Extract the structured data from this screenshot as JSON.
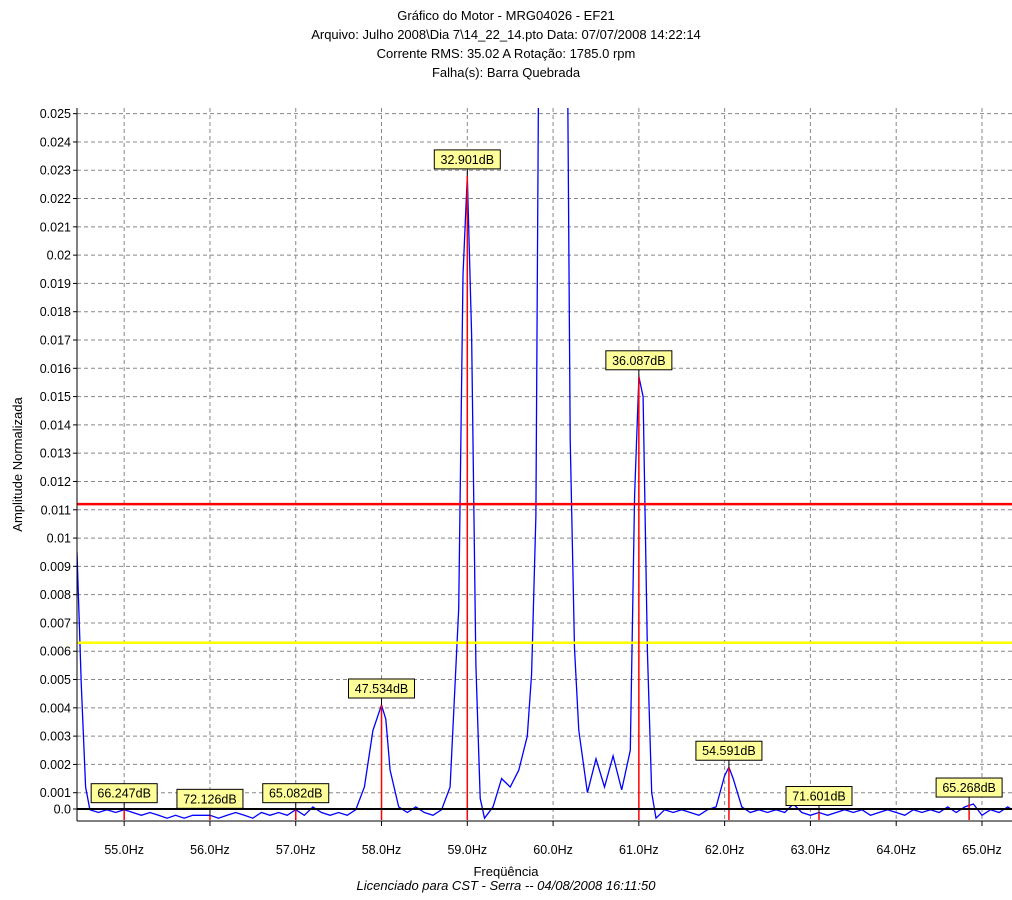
{
  "header": {
    "title": "Gráfico do Motor - MRG04026 - EF21",
    "file_line": "Arquivo: Julho 2008\\Dia 7\\14_22_14.pto    Data: 07/07/2008 14:22:14",
    "current_line": "Corrente RMS: 35.02 A    Rotação: 1785.0 rpm",
    "fault_line": "Falha(s): Barra Quebrada"
  },
  "footer": {
    "license": "Licenciado para CST - Serra -- 04/08/2008 16:11:50"
  },
  "chart_data": {
    "type": "line",
    "xlabel": "Freqüência",
    "ylabel": "Amplitude Normalizada",
    "xlim": [
      54.45,
      65.35
    ],
    "ylim": [
      0,
      0.0252
    ],
    "grid": true,
    "x_ticks": [
      55,
      56,
      57,
      58,
      59,
      60,
      61,
      62,
      63,
      64,
      65
    ],
    "x_tick_labels": [
      "55.0Hz",
      "56.0Hz",
      "57.0Hz",
      "58.0Hz",
      "59.0Hz",
      "60.0Hz",
      "61.0Hz",
      "62.0Hz",
      "63.0Hz",
      "64.0Hz",
      "65.0Hz"
    ],
    "y_ticks": [
      0,
      0.001,
      0.002,
      0.003,
      0.004,
      0.005,
      0.006,
      0.007,
      0.008,
      0.009,
      0.01,
      0.011,
      0.012,
      0.013,
      0.014,
      0.015,
      0.016,
      0.017,
      0.018,
      0.019,
      0.02,
      0.021,
      0.022,
      0.023,
      0.024,
      0.025
    ],
    "y_tick_labels": [
      "0.0",
      "0.001",
      "0.002",
      "0.003",
      "0.004",
      "0.005",
      "0.006",
      "0.007",
      "0.008",
      "0.009",
      "0.01",
      "0.011",
      "0.012",
      "0.013",
      "0.014",
      "0.015",
      "0.016",
      "0.017",
      "0.018",
      "0.019",
      "0.02",
      "0.021",
      "0.022",
      "0.023",
      "0.024",
      "0.025"
    ],
    "thresholds": [
      {
        "y": 0.0112,
        "color": "#ff0000"
      },
      {
        "y": 0.0063,
        "color": "#ffff00"
      }
    ],
    "colors": {
      "spectrum": "#0000ff",
      "markers": "#ff0000",
      "label_bg": "#ffff99",
      "grid": "#888888"
    },
    "spectrum": [
      [
        54.45,
        0.0095
      ],
      [
        54.5,
        0.0048
      ],
      [
        54.55,
        0.0012
      ],
      [
        54.6,
        0.0004
      ],
      [
        54.7,
        0.0003
      ],
      [
        54.8,
        0.0004
      ],
      [
        54.9,
        0.0003
      ],
      [
        55.0,
        0.0004
      ],
      [
        55.1,
        0.0003
      ],
      [
        55.2,
        0.0002
      ],
      [
        55.3,
        0.0003
      ],
      [
        55.4,
        0.0002
      ],
      [
        55.5,
        0.0001
      ],
      [
        55.6,
        0.0002
      ],
      [
        55.7,
        0.0001
      ],
      [
        55.8,
        0.0002
      ],
      [
        55.9,
        0.0002
      ],
      [
        56.0,
        0.0002
      ],
      [
        56.1,
        0.0001
      ],
      [
        56.2,
        0.0002
      ],
      [
        56.3,
        0.0003
      ],
      [
        56.4,
        0.0002
      ],
      [
        56.5,
        0.0001
      ],
      [
        56.6,
        0.0003
      ],
      [
        56.7,
        0.0002
      ],
      [
        56.8,
        0.0003
      ],
      [
        56.9,
        0.0002
      ],
      [
        57.0,
        0.0004
      ],
      [
        57.1,
        0.0002
      ],
      [
        57.2,
        0.0005
      ],
      [
        57.3,
        0.0003
      ],
      [
        57.4,
        0.0002
      ],
      [
        57.5,
        0.0003
      ],
      [
        57.6,
        0.0002
      ],
      [
        57.7,
        0.0004
      ],
      [
        57.8,
        0.0012
      ],
      [
        57.9,
        0.0032
      ],
      [
        58.0,
        0.0041
      ],
      [
        58.05,
        0.0036
      ],
      [
        58.1,
        0.0018
      ],
      [
        58.2,
        0.0005
      ],
      [
        58.3,
        0.0003
      ],
      [
        58.4,
        0.0005
      ],
      [
        58.5,
        0.0003
      ],
      [
        58.6,
        0.0002
      ],
      [
        58.7,
        0.0004
      ],
      [
        58.8,
        0.0012
      ],
      [
        58.9,
        0.0075
      ],
      [
        58.95,
        0.0193
      ],
      [
        59.0,
        0.0228
      ],
      [
        59.05,
        0.0172
      ],
      [
        59.1,
        0.0055
      ],
      [
        59.15,
        0.0008
      ],
      [
        59.2,
        0.0001
      ],
      [
        59.3,
        0.0005
      ],
      [
        59.4,
        0.0015
      ],
      [
        59.5,
        0.0012
      ],
      [
        59.6,
        0.0018
      ],
      [
        59.7,
        0.003
      ],
      [
        59.75,
        0.0052
      ],
      [
        59.8,
        0.0108
      ],
      [
        59.83,
        0.026
      ],
      [
        60.17,
        0.026
      ],
      [
        60.2,
        0.0135
      ],
      [
        60.25,
        0.0061
      ],
      [
        60.3,
        0.0032
      ],
      [
        60.4,
        0.001
      ],
      [
        60.5,
        0.0022
      ],
      [
        60.6,
        0.0012
      ],
      [
        60.7,
        0.0023
      ],
      [
        60.8,
        0.0011
      ],
      [
        60.9,
        0.0025
      ],
      [
        60.95,
        0.0115
      ],
      [
        61.0,
        0.0157
      ],
      [
        61.05,
        0.015
      ],
      [
        61.1,
        0.006
      ],
      [
        61.15,
        0.001
      ],
      [
        61.2,
        0.0001
      ],
      [
        61.3,
        0.0004
      ],
      [
        61.4,
        0.0003
      ],
      [
        61.5,
        0.0004
      ],
      [
        61.6,
        0.0003
      ],
      [
        61.7,
        0.0002
      ],
      [
        61.8,
        0.0004
      ],
      [
        61.9,
        0.0005
      ],
      [
        62.0,
        0.0016
      ],
      [
        62.05,
        0.0019
      ],
      [
        62.1,
        0.0015
      ],
      [
        62.2,
        0.0005
      ],
      [
        62.3,
        0.0003
      ],
      [
        62.4,
        0.0004
      ],
      [
        62.5,
        0.0003
      ],
      [
        62.6,
        0.0004
      ],
      [
        62.7,
        0.0003
      ],
      [
        62.8,
        0.0006
      ],
      [
        62.9,
        0.0003
      ],
      [
        63.0,
        0.0002
      ],
      [
        63.1,
        0.0003
      ],
      [
        63.2,
        0.0002
      ],
      [
        63.3,
        0.0003
      ],
      [
        63.4,
        0.0004
      ],
      [
        63.5,
        0.0003
      ],
      [
        63.6,
        0.0004
      ],
      [
        63.7,
        0.0002
      ],
      [
        63.8,
        0.0003
      ],
      [
        63.9,
        0.0004
      ],
      [
        64.0,
        0.0003
      ],
      [
        64.1,
        0.0002
      ],
      [
        64.2,
        0.0004
      ],
      [
        64.3,
        0.0003
      ],
      [
        64.4,
        0.0004
      ],
      [
        64.5,
        0.0003
      ],
      [
        64.6,
        0.0005
      ],
      [
        64.7,
        0.0003
      ],
      [
        64.8,
        0.0005
      ],
      [
        64.9,
        0.0006
      ],
      [
        65.0,
        0.0002
      ],
      [
        65.1,
        0.0004
      ],
      [
        65.2,
        0.0003
      ],
      [
        65.3,
        0.0005
      ],
      [
        65.35,
        0.0004
      ]
    ],
    "annotations": [
      {
        "label": "66.247dB",
        "x": 55.0,
        "y": 0.0004
      },
      {
        "label": "72.126dB",
        "x": 56.0,
        "y": 0.0002
      },
      {
        "label": "65.082dB",
        "x": 57.0,
        "y": 0.0004
      },
      {
        "label": "47.534dB",
        "x": 58.0,
        "y": 0.0041
      },
      {
        "label": "32.901dB",
        "x": 59.0,
        "y": 0.0228
      },
      {
        "label": "36.087dB",
        "x": 61.0,
        "y": 0.0157
      },
      {
        "label": "54.591dB",
        "x": 62.05,
        "y": 0.0019
      },
      {
        "label": "71.601dB",
        "x": 63.1,
        "y": 0.0003
      },
      {
        "label": "65.268dB",
        "x": 64.85,
        "y": 0.0006
      }
    ]
  }
}
